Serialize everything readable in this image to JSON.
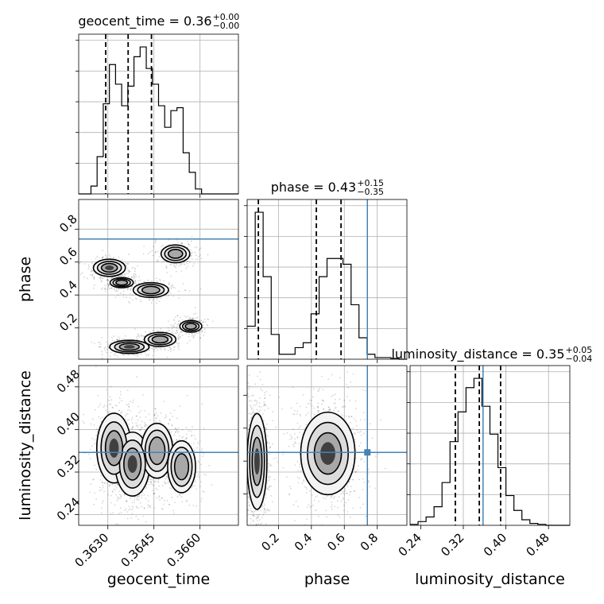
{
  "chart_data": {
    "type": "corner",
    "parameters": [
      "geocent_time",
      "phase",
      "luminosity_distance"
    ],
    "axis_labels": {
      "geocent_time": "geocent_time",
      "phase": "phase",
      "luminosity_distance": "luminosity_distance"
    },
    "ranges": {
      "geocent_time": [
        0.36205,
        0.36725
      ],
      "phase": [
        0.01,
        0.98
      ],
      "luminosity_distance": [
        0.22,
        0.52
      ]
    },
    "ticks": {
      "geocent_time": [
        0.363,
        0.3645,
        0.366
      ],
      "phase": [
        0.2,
        0.4,
        0.6,
        0.8
      ],
      "luminosity_distance": [
        0.24,
        0.32,
        0.4,
        0.48
      ]
    },
    "tick_labels": {
      "geocent_time": [
        "0.3630",
        "0.3645",
        "0.3660"
      ],
      "phase": [
        "0.2",
        "0.4",
        "0.6",
        "0.8"
      ],
      "luminosity_distance": [
        "0.24",
        "0.32",
        "0.40",
        "0.48"
      ]
    },
    "titles": [
      {
        "param": "geocent_time",
        "name": "geocent_time",
        "median": "0.36",
        "plus": "+0.00",
        "minus": "−0.00"
      },
      {
        "param": "phase",
        "name": "phase",
        "median": "0.43",
        "plus": "+0.15",
        "minus": "−0.35"
      },
      {
        "param": "luminosity_distance",
        "name": "luminosity_distance",
        "median": "0.35",
        "plus": "+0.05",
        "minus": "−0.04"
      }
    ],
    "quantiles": {
      "geocent_time": [
        0.36293,
        0.36366,
        0.36442
      ],
      "phase": [
        0.078,
        0.43,
        0.58
      ],
      "luminosity_distance": [
        0.305,
        0.35,
        0.39
      ]
    },
    "truths": {
      "phase": 0.74,
      "luminosity_distance": 0.357
    },
    "truth_color": "#4682b4",
    "histograms": {
      "geocent_time": {
        "edges": [
          0.36205,
          0.36225,
          0.36245,
          0.36265,
          0.36285,
          0.36305,
          0.36325,
          0.36345,
          0.36365,
          0.36385,
          0.36405,
          0.36425,
          0.36445,
          0.36465,
          0.36485,
          0.36505,
          0.36525,
          0.36545,
          0.36565,
          0.36585,
          0.36605,
          0.36625,
          0.36645,
          0.36665,
          0.36685,
          0.36705,
          0.36725
        ],
        "counts": [
          0,
          0,
          8,
          38,
          92,
          132,
          112,
          90,
          110,
          140,
          150,
          128,
          112,
          90,
          68,
          85,
          88,
          42,
          22,
          5,
          0,
          0,
          0,
          0,
          0,
          0
        ]
      },
      "phase": {
        "edges": [
          0.01,
          0.059,
          0.107,
          0.156,
          0.204,
          0.253,
          0.301,
          0.35,
          0.398,
          0.447,
          0.495,
          0.544,
          0.592,
          0.641,
          0.689,
          0.738,
          0.786,
          0.835,
          0.883,
          0.932,
          0.98
        ],
        "counts": [
          40,
          178,
          100,
          30,
          6,
          6,
          14,
          20,
          55,
          100,
          122,
          122,
          115,
          66,
          26,
          6,
          2,
          2,
          1,
          0
        ]
      },
      "luminosity_distance": {
        "edges": [
          0.22,
          0.235,
          0.25,
          0.265,
          0.28,
          0.295,
          0.31,
          0.325,
          0.34,
          0.355,
          0.37,
          0.385,
          0.4,
          0.415,
          0.43,
          0.445,
          0.46,
          0.475,
          0.49,
          0.505,
          0.52
        ],
        "counts": [
          1,
          4,
          9,
          20,
          46,
          90,
          122,
          148,
          158,
          128,
          98,
          62,
          32,
          16,
          6,
          2,
          1,
          0,
          0,
          0
        ]
      }
    },
    "density_2d": {
      "phase_vs_geocent_time": [
        {
          "x": 0.36305,
          "y": 0.565,
          "sx": 0.00026,
          "sy": 0.026,
          "w": 1.0
        },
        {
          "x": 0.36345,
          "y": 0.475,
          "sx": 0.00022,
          "sy": 0.018,
          "w": 0.6
        },
        {
          "x": 0.3644,
          "y": 0.43,
          "sx": 0.00032,
          "sy": 0.025,
          "w": 0.7
        },
        {
          "x": 0.3652,
          "y": 0.65,
          "sx": 0.00026,
          "sy": 0.03,
          "w": 0.7
        },
        {
          "x": 0.3637,
          "y": 0.085,
          "sx": 0.00032,
          "sy": 0.02,
          "w": 1.0
        },
        {
          "x": 0.3647,
          "y": 0.13,
          "sx": 0.0003,
          "sy": 0.025,
          "w": 0.6
        },
        {
          "x": 0.3657,
          "y": 0.21,
          "sx": 0.00022,
          "sy": 0.022,
          "w": 0.5
        }
      ],
      "luminosity_distance_vs_geocent_time": [
        {
          "x": 0.3632,
          "y": 0.365,
          "sx": 0.0003,
          "sy": 0.035,
          "w": 0.8
        },
        {
          "x": 0.3638,
          "y": 0.335,
          "sx": 0.00028,
          "sy": 0.03,
          "w": 1.0
        },
        {
          "x": 0.3646,
          "y": 0.36,
          "sx": 0.0003,
          "sy": 0.03,
          "w": 0.6
        },
        {
          "x": 0.3654,
          "y": 0.33,
          "sx": 0.00028,
          "sy": 0.03,
          "w": 0.5
        }
      ],
      "luminosity_distance_vs_phase": [
        {
          "x": 0.07,
          "y": 0.34,
          "sx": 0.03,
          "sy": 0.045,
          "w": 1.0
        },
        {
          "x": 0.5,
          "y": 0.355,
          "sx": 0.085,
          "sy": 0.04,
          "w": 0.9
        }
      ]
    }
  }
}
